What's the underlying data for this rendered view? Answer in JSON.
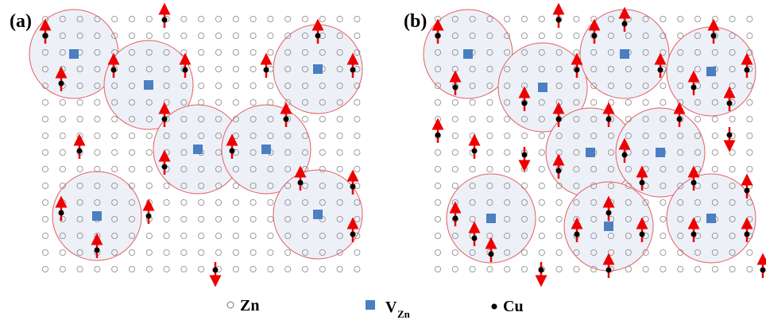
{
  "panels": [
    {
      "label": "(a)"
    },
    {
      "label": "(b)"
    }
  ],
  "legend": {
    "zn": "Zn",
    "vzn": {
      "main": "V",
      "sub": "Zn"
    },
    "cu": "Cu"
  }
}
